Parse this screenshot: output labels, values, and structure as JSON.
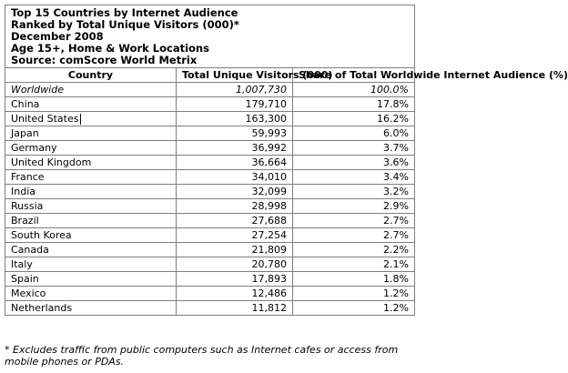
{
  "title_lines": [
    "Top 15 Countries by Internet Audience",
    "Ranked by Total Unique Visitors (000)*",
    "December 2008",
    "Age 15+, Home & Work Locations",
    "Source: comScore World Metrix"
  ],
  "headers": {
    "country": "Country",
    "visitors": "Total Unique Visitors (000)",
    "share": "Share of Total Worldwide Internet Audience (%)"
  },
  "rows": [
    {
      "country": "Worldwide",
      "visitors": "1,007,730",
      "share": "100.0%"
    },
    {
      "country": "China",
      "visitors": "179,710",
      "share": "17.8%"
    },
    {
      "country": "United States",
      "visitors": "163,300",
      "share": "16.2%"
    },
    {
      "country": "Japan",
      "visitors": "59,993",
      "share": "6.0%"
    },
    {
      "country": "Germany",
      "visitors": "36,992",
      "share": "3.7%"
    },
    {
      "country": "United Kingdom",
      "visitors": "36,664",
      "share": "3.6%"
    },
    {
      "country": "France",
      "visitors": "34,010",
      "share": "3.4%"
    },
    {
      "country": "India",
      "visitors": "32,099",
      "share": "3.2%"
    },
    {
      "country": "Russia",
      "visitors": "28,998",
      "share": "2.9%"
    },
    {
      "country": "Brazil",
      "visitors": "27,688",
      "share": "2.7%"
    },
    {
      "country": "South Korea",
      "visitors": "27,254",
      "share": "2.7%"
    },
    {
      "country": "Canada",
      "visitors": "21,809",
      "share": "2.2%"
    },
    {
      "country": "Italy",
      "visitors": "20,780",
      "share": "2.1%"
    },
    {
      "country": "Spain",
      "visitors": "17,893",
      "share": "1.8%"
    },
    {
      "country": "Mexico",
      "visitors": "12,486",
      "share": "1.2%"
    },
    {
      "country": "Netherlands",
      "visitors": "11,812",
      "share": "1.2%"
    }
  ],
  "footnote": "* Excludes traffic from public computers such as Internet cafes or access from mobile phones or PDAs."
}
